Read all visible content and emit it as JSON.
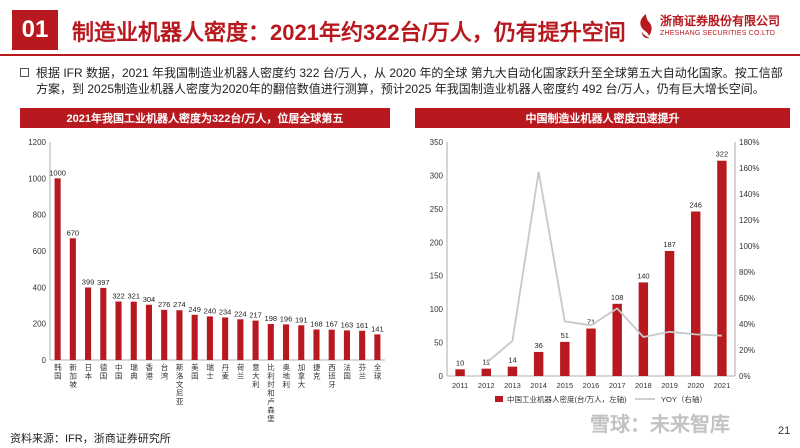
{
  "header": {
    "section_number": "01",
    "title": "制造业机器人密度：2021年约322台/万人，仍有提升空间",
    "logo_cn": "浙商证券股份有限公司",
    "logo_en": "ZHESHANG SECURITIES CO.LTD"
  },
  "bullet_text": "根据 IFR 数据，2021 年我国制造业机器人密度约 322 台/万人，从 2020 年的全球 第九大自动化国家跃升至全球第五大自动化国家。按工信部方案，到 2025制造业机器人密度为2020年的翻倍数值进行测算，预计2025 年我国制造业机器人密度约 492 台/万人，仍有巨大增长空间。",
  "source": "资料来源：IFR，浙商证券研究所",
  "page_number": "21",
  "watermark": "雪球：未来智库",
  "colors": {
    "brand_red": "#b8191f",
    "bar_red": "#b8191f",
    "line_gray": "#c8c8c8"
  },
  "chart_data": [
    {
      "type": "bar",
      "title": "2021年我国工业机器人密度为322台/万人，位居全球第五",
      "categories": [
        "韩国",
        "新加坡",
        "日本",
        "德国",
        "中国",
        "瑞典",
        "香港",
        "台湾",
        "斯洛文尼亚",
        "美国",
        "瑞士",
        "丹麦",
        "荷兰",
        "意大利",
        "比利时和卢森堡",
        "奥地利",
        "加拿大",
        "捷克",
        "西班牙",
        "法国",
        "芬兰",
        "全球"
      ],
      "values": [
        1000,
        670,
        399,
        397,
        322,
        321,
        304,
        276,
        274,
        249,
        240,
        234,
        224,
        217,
        198,
        196,
        191,
        168,
        167,
        163,
        161,
        141
      ],
      "data_labels": [
        "1000",
        "670",
        "399",
        "397",
        "322",
        "321",
        "304",
        "276",
        "274",
        "249",
        "240",
        "234",
        "224",
        "217",
        "198",
        "196",
        "191",
        "168",
        "167",
        "163",
        "161",
        "141"
      ],
      "ylim": [
        0,
        1200
      ],
      "yticks": [
        "0",
        "200",
        "400",
        "600",
        "800",
        "1000",
        "1200"
      ],
      "grid": false
    },
    {
      "type": "bar+line",
      "title": "中国制造业机器人密度迅速提升",
      "categories": [
        "2011",
        "2012",
        "2013",
        "2014",
        "2015",
        "2016",
        "2017",
        "2018",
        "2019",
        "2020",
        "2021"
      ],
      "series": [
        {
          "name": "中国工业机器人密度(台/万人，左轴)",
          "type": "bar",
          "values": [
            10,
            11,
            14,
            36,
            51,
            71,
            108,
            140,
            187,
            246,
            322
          ]
        },
        {
          "name": "YOY（右轴）",
          "type": "line",
          "axis": "right",
          "values": [
            null,
            10,
            27,
            157,
            42,
            39,
            52,
            30,
            34,
            32,
            31
          ]
        }
      ],
      "ylim_left": [
        0,
        350
      ],
      "yticks_left": [
        "0",
        "50",
        "100",
        "150",
        "200",
        "250",
        "300",
        "350"
      ],
      "ylim_right": [
        0,
        180
      ],
      "yticks_right": [
        "0%",
        "20%",
        "40%",
        "60%",
        "80%",
        "100%",
        "120%",
        "140%",
        "160%",
        "180%"
      ],
      "legend_placement": "bottom",
      "grid": false
    }
  ]
}
